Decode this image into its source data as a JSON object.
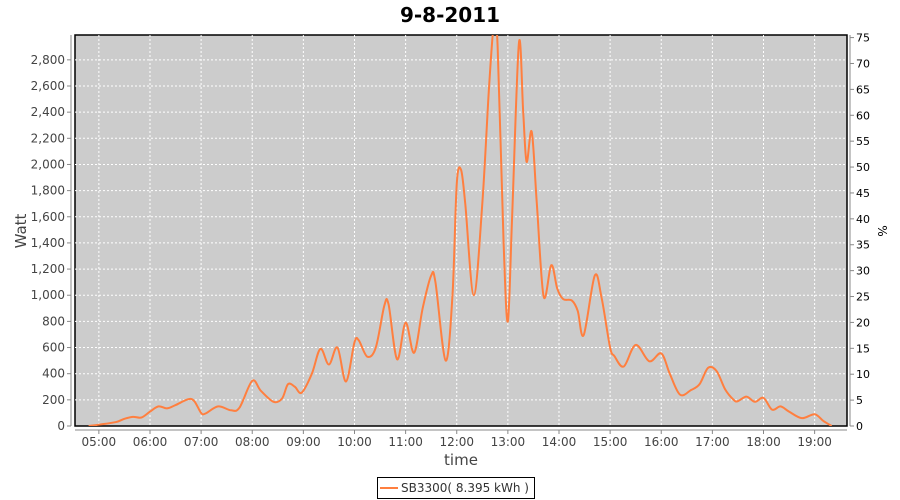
{
  "chart_data": {
    "type": "line",
    "title": "9-8-2011",
    "xlabel": "time",
    "ylabel": "Watt",
    "y2label": "%",
    "xlim": [
      "04:32",
      "19:38"
    ],
    "ylim": [
      0,
      2990
    ],
    "y2lim": [
      0,
      75.5
    ],
    "grid": true,
    "legend_position": "bottom",
    "x_ticks": [
      "05:00",
      "06:00",
      "07:00",
      "08:00",
      "09:00",
      "10:00",
      "11:00",
      "12:00",
      "13:00",
      "14:00",
      "15:00",
      "16:00",
      "17:00",
      "18:00",
      "19:00"
    ],
    "y_ticks": [
      "0",
      "200",
      "400",
      "600",
      "800",
      "1,000",
      "1,200",
      "1,400",
      "1,600",
      "1,800",
      "2,000",
      "2,200",
      "2,400",
      "2,600",
      "2,800"
    ],
    "y2_ticks": [
      "0",
      "5",
      "10",
      "15",
      "20",
      "25",
      "30",
      "35",
      "40",
      "45",
      "50",
      "55",
      "60",
      "65",
      "70",
      "75"
    ],
    "colors": {
      "series": "#ff7f3f",
      "plot_background": "#cccccc",
      "grid": "#ffffff"
    },
    "series": [
      {
        "name": "SB3300( 8.395 kWh )",
        "x": [
          "04:48",
          "05:00",
          "05:20",
          "05:30",
          "05:40",
          "05:50",
          "06:00",
          "06:10",
          "06:20",
          "06:30",
          "06:45",
          "06:52",
          "07:00",
          "07:05",
          "07:20",
          "07:35",
          "07:45",
          "08:00",
          "08:10",
          "08:25",
          "08:35",
          "08:42",
          "08:50",
          "08:58",
          "09:10",
          "09:20",
          "09:30",
          "09:40",
          "09:50",
          "10:00",
          "10:05",
          "10:15",
          "10:25",
          "10:35",
          "10:40",
          "10:50",
          "11:00",
          "11:10",
          "11:20",
          "11:30",
          "11:35",
          "11:47",
          "11:55",
          "12:00",
          "12:05",
          "12:10",
          "12:20",
          "12:30",
          "12:38",
          "12:44",
          "12:48",
          "12:55",
          "13:00",
          "13:05",
          "13:13",
          "13:18",
          "13:22",
          "13:28",
          "13:34",
          "13:42",
          "13:51",
          "13:58",
          "14:05",
          "14:15",
          "14:22",
          "14:29",
          "14:42",
          "14:50",
          "15:00",
          "15:05",
          "15:16",
          "15:30",
          "15:46",
          "16:00",
          "16:10",
          "16:22",
          "16:35",
          "16:45",
          "16:55",
          "17:05",
          "17:15",
          "17:25",
          "17:30",
          "17:40",
          "17:50",
          "18:00",
          "18:10",
          "18:20",
          "18:30",
          "18:45",
          "19:00",
          "19:10",
          "19:20"
        ],
        "values": [
          0,
          10,
          30,
          55,
          70,
          65,
          110,
          150,
          135,
          160,
          205,
          190,
          100,
          95,
          150,
          120,
          140,
          345,
          270,
          185,
          210,
          320,
          300,
          255,
          400,
          590,
          470,
          600,
          340,
          640,
          655,
          530,
          600,
          920,
          930,
          510,
          790,
          560,
          900,
          1150,
          1100,
          500,
          1000,
          1850,
          1960,
          1700,
          1000,
          1700,
          2600,
          3100,
          2900,
          1400,
          800,
          1600,
          2930,
          2400,
          2020,
          2250,
          1700,
          990,
          1230,
          1050,
          970,
          960,
          880,
          695,
          1150,
          980,
          600,
          535,
          455,
          620,
          495,
          555,
          400,
          240,
          275,
          320,
          445,
          420,
          280,
          200,
          190,
          225,
          185,
          215,
          125,
          150,
          110,
          60,
          90,
          40,
          0
        ]
      }
    ]
  }
}
